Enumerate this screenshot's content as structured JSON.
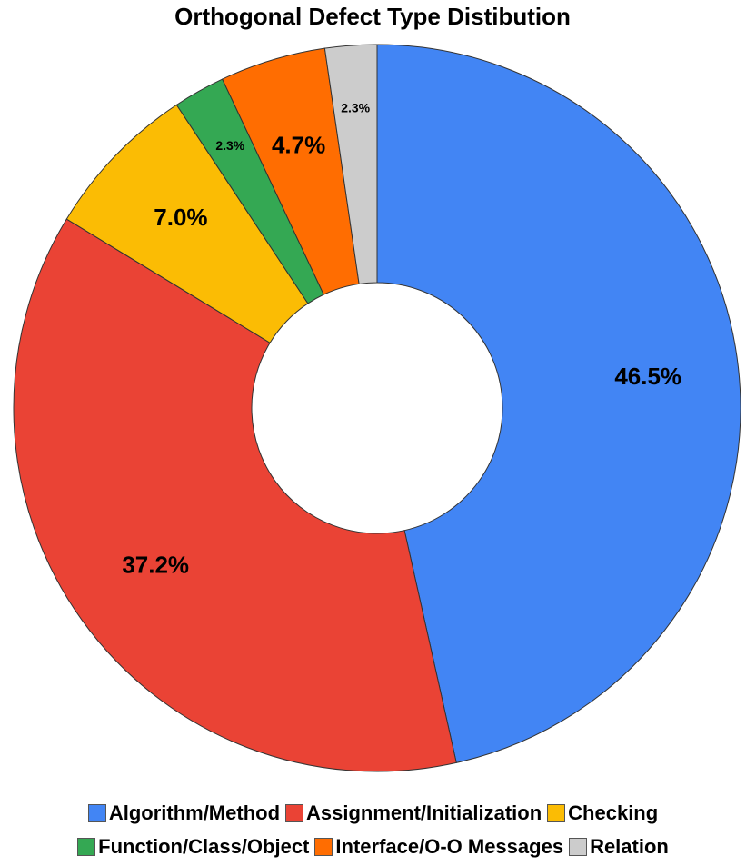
{
  "chart_data": {
    "type": "donut",
    "title": "Orthogonal Defect Type Distibution",
    "categories": [
      "Algorithm/Method",
      "Assignment/Initialization",
      "Checking",
      "Function/Class/Object",
      "Interface/O-O Messages",
      "Relation"
    ],
    "values": [
      46.5,
      37.2,
      7.0,
      2.3,
      4.7,
      2.3
    ],
    "value_labels": [
      "46.5%",
      "37.2%",
      "7.0%",
      "2.3%",
      "4.7%",
      "2.3%"
    ],
    "colors": [
      "#4285f4",
      "#ea4335",
      "#fbbc04",
      "#34a853",
      "#ff6d01",
      "#cccccc"
    ],
    "legend": "bottom"
  }
}
